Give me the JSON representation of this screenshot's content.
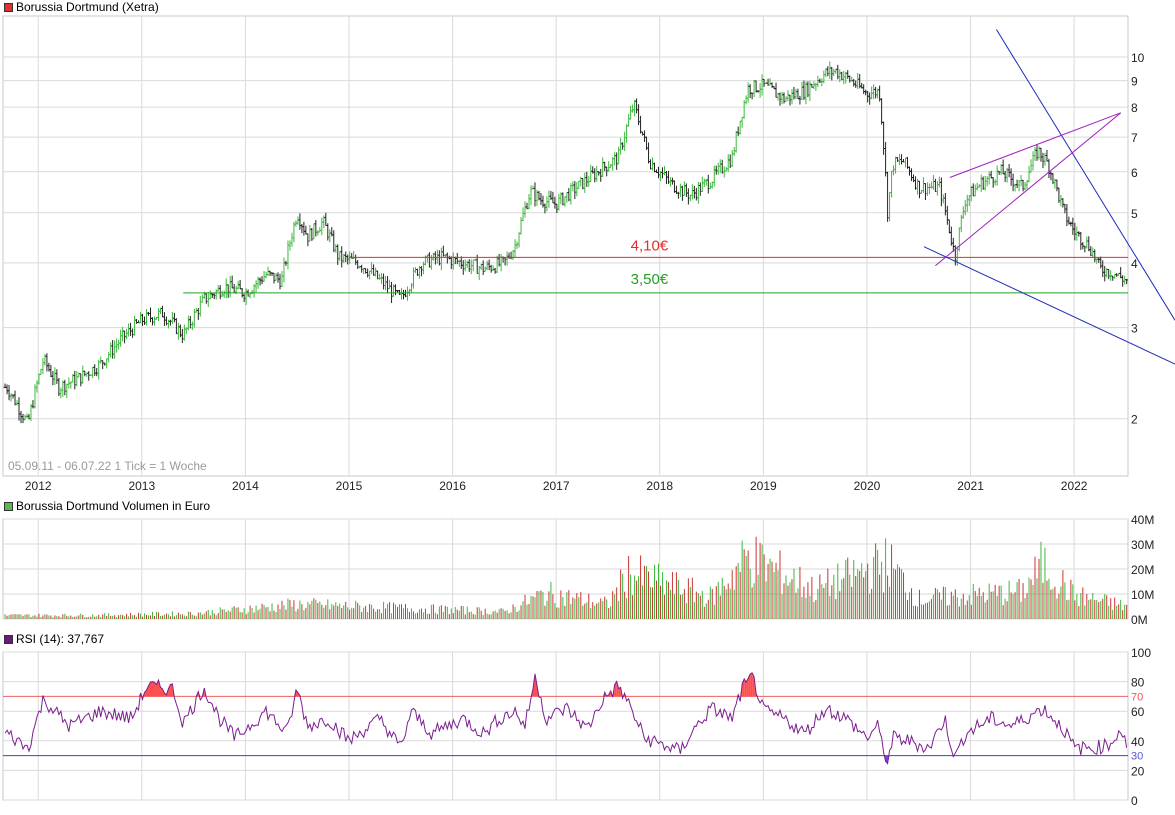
{
  "colors": {
    "up": "#3db83d",
    "down": "#cc3333",
    "grid": "#d9d9d9",
    "support_red": "#e52b2b",
    "support_green": "#22a122",
    "trend_blue": "#1f2fb5",
    "trend_purple": "#a020c0",
    "rsi_line": "#7b1f8f",
    "rsi_over": "#ff4d4d",
    "rsi_under": "#6a3fd6"
  },
  "price_panel": {
    "title": "Borussia Dortmund (Xetra)",
    "title_color": "#e03030",
    "footer": "05.09.11 - 06.07.22   1 Tick = 1 Woche"
  },
  "volume_panel": {
    "title": "Borussia Dortmund Volumen in Euro",
    "title_color": "#55bb55"
  },
  "rsi_panel": {
    "title": "RSI (14): 37,767",
    "title_color": "#6a1a7a"
  },
  "chart_data": [
    {
      "type": "candlestick",
      "title": "Borussia Dortmund (Xetra)",
      "x_range": [
        "2011-09-05",
        "2022-07-06"
      ],
      "x_ticks": [
        "2012",
        "2013",
        "2014",
        "2015",
        "2016",
        "2017",
        "2018",
        "2019",
        "2020",
        "2021",
        "2022"
      ],
      "y_scale": "log",
      "y_ticks": [
        2,
        3,
        4,
        5,
        6,
        7,
        8,
        9,
        10
      ],
      "ylim": [
        1.55,
        12
      ],
      "series": [
        {
          "x": [
            2011.7,
            2011.9,
            2012.05,
            2012.2,
            2012.4,
            2012.6,
            2012.8,
            2013.0,
            2013.2,
            2013.4,
            2013.6,
            2013.8,
            2014.0,
            2014.2,
            2014.35,
            2014.5,
            2014.6,
            2014.75,
            2014.9,
            2015.1,
            2015.3,
            2015.5,
            2015.7,
            2015.9,
            2016.1,
            2016.3,
            2016.5,
            2016.6,
            2016.75,
            2016.85,
            2017.0,
            2017.2,
            2017.4,
            2017.6,
            2017.75,
            2017.9,
            2018.1,
            2018.3,
            2018.5,
            2018.7,
            2018.85,
            2019.0,
            2019.2,
            2019.4,
            2019.6,
            2019.7,
            2019.85,
            2020.0,
            2020.12,
            2020.2,
            2020.25,
            2020.35,
            2020.5,
            2020.7,
            2020.85,
            2020.95,
            2021.1,
            2021.3,
            2021.5,
            2021.65,
            2021.75,
            2021.9,
            2022.0,
            2022.15,
            2022.25,
            2022.35,
            2022.5
          ],
          "y": [
            2.3,
            1.95,
            2.6,
            2.3,
            2.4,
            2.55,
            2.85,
            3.1,
            3.2,
            2.9,
            3.4,
            3.6,
            3.5,
            3.8,
            3.7,
            5.0,
            4.5,
            4.8,
            4.1,
            4.0,
            3.7,
            3.4,
            4.0,
            4.1,
            4.0,
            3.9,
            4.0,
            4.3,
            5.5,
            5.3,
            5.2,
            5.6,
            6.0,
            6.4,
            8.1,
            6.3,
            5.7,
            5.4,
            5.8,
            6.4,
            8.7,
            8.8,
            8.3,
            8.6,
            9.3,
            9.4,
            9.0,
            8.5,
            8.6,
            5.0,
            6.2,
            6.3,
            5.6,
            5.6,
            4.1,
            5.3,
            5.7,
            6.0,
            5.6,
            6.6,
            6.2,
            5.0,
            4.6,
            4.3,
            3.9,
            3.85,
            3.7
          ]
        }
      ],
      "annotations": [
        {
          "label": "4,10€",
          "y": 4.1,
          "color": "red"
        },
        {
          "label": "3,50€",
          "y": 3.5,
          "color": "green"
        }
      ]
    },
    {
      "type": "bar",
      "title": "Borussia Dortmund Volumen in Euro",
      "y_ticks": [
        "0M",
        "10M",
        "20M",
        "30M",
        "40M"
      ],
      "ylim": [
        0,
        40
      ],
      "series": [
        {
          "name": "Volumen",
          "x": [
            2011.7,
            2012.5,
            2013.5,
            2014.5,
            2015.5,
            2016.5,
            2016.9,
            2017.5,
            2017.7,
            2018.5,
            2018.85,
            2019.5,
            2020.2,
            2020.5,
            2021.0,
            2021.5,
            2021.7,
            2022.0,
            2022.5
          ],
          "values": [
            2,
            2,
            3,
            8,
            6,
            4,
            14,
            8,
            25,
            12,
            34,
            16,
            31,
            11,
            13,
            15,
            30,
            13,
            7
          ]
        }
      ]
    },
    {
      "type": "line",
      "title": "RSI (14): 37,767",
      "y_ticks": [
        0,
        20,
        30,
        40,
        60,
        70,
        80,
        100
      ],
      "ylim": [
        0,
        100
      ],
      "reference_lines": [
        70,
        30
      ],
      "series": [
        {
          "name": "RSI (14)",
          "x": [
            2011.7,
            2011.9,
            2012.05,
            2012.3,
            2012.6,
            2012.9,
            2013.05,
            2013.3,
            2013.4,
            2013.6,
            2013.75,
            2013.9,
            2014.2,
            2014.4,
            2014.5,
            2014.6,
            2014.8,
            2015.0,
            2015.3,
            2015.5,
            2015.6,
            2015.8,
            2016.1,
            2016.3,
            2016.45,
            2016.6,
            2016.7,
            2016.8,
            2016.9,
            2017.1,
            2017.3,
            2017.45,
            2017.6,
            2017.7,
            2017.85,
            2018.0,
            2018.2,
            2018.3,
            2018.5,
            2018.7,
            2018.8,
            2018.9,
            2019.0,
            2019.2,
            2019.4,
            2019.6,
            2019.8,
            2020.0,
            2020.1,
            2020.2,
            2020.25,
            2020.4,
            2020.6,
            2020.75,
            2020.85,
            2020.95,
            2021.2,
            2021.4,
            2021.6,
            2021.7,
            2021.9,
            2022.0,
            2022.2,
            2022.35,
            2022.45,
            2022.5
          ],
          "y": [
            45,
            35,
            68,
            50,
            60,
            55,
            77,
            75,
            52,
            76,
            55,
            42,
            60,
            45,
            75,
            50,
            55,
            40,
            55,
            35,
            60,
            45,
            55,
            45,
            55,
            60,
            50,
            84,
            55,
            62,
            48,
            68,
            77,
            65,
            42,
            38,
            33,
            45,
            62,
            55,
            76,
            83,
            60,
            55,
            45,
            62,
            55,
            42,
            50,
            25,
            42,
            40,
            35,
            55,
            28,
            45,
            55,
            50,
            58,
            62,
            48,
            35,
            35,
            38,
            48,
            37.767
          ]
        }
      ]
    }
  ]
}
